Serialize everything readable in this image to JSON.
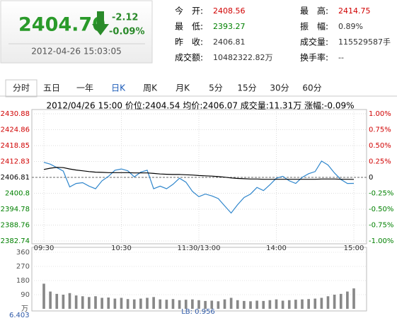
{
  "quote": {
    "price": "2404.70",
    "change": "-2.12",
    "change_pct": "-0.09%",
    "time": "2012-04-26 15:03:05",
    "fields": [
      {
        "label": "今　开:",
        "value": "2408.56",
        "color": "#d00000"
      },
      {
        "label": "最　高:",
        "value": "2414.75",
        "color": "#d00000"
      },
      {
        "label": "最　低:",
        "value": "2393.27",
        "color": "#008000"
      },
      {
        "label": "振　幅:",
        "value": "0.89%",
        "color": "#333333"
      },
      {
        "label": "昨　收:",
        "value": "2406.81",
        "color": "#333333"
      },
      {
        "label": "成交量:",
        "value": "115529587手",
        "color": "#333333"
      },
      {
        "label": "成交额:",
        "value": "10482322.82万",
        "color": "#333333"
      },
      {
        "label": "换手率:",
        "value": "--",
        "color": "#333333"
      }
    ]
  },
  "tabs": [
    "分时",
    "五日",
    "一年",
    "日K",
    "周K",
    "月K",
    "5分",
    "15分",
    "30分",
    "60分"
  ],
  "info": "2012/04/26 15:00  价位:2404.54  均价:2406.07  成交量:11.31万  涨幅:-0.09%",
  "chart_data": [
    {
      "type": "line",
      "categories": [
        "09:30",
        null,
        null,
        null,
        null,
        null,
        null,
        null,
        null,
        null,
        null,
        null,
        "10:30",
        null,
        null,
        null,
        null,
        null,
        null,
        null,
        null,
        null,
        null,
        null,
        "11:30/13:00",
        null,
        null,
        null,
        null,
        null,
        null,
        null,
        null,
        null,
        null,
        null,
        "14:00",
        null,
        null,
        null,
        null,
        null,
        null,
        null,
        null,
        null,
        null,
        null,
        "15:00"
      ],
      "series": [
        {
          "name": "价位",
          "color": "#2f86cc",
          "values": [
            2412.5,
            2411.8,
            2410.5,
            2409.2,
            2403.2,
            2404.5,
            2404.8,
            2403.5,
            2402.5,
            2405.5,
            2407.2,
            2409.5,
            2410.0,
            2409.3,
            2407.0,
            2408.8,
            2409.5,
            2402.5,
            2403.5,
            2402.5,
            2404.2,
            2406.5,
            2405.0,
            2401.5,
            2399.5,
            2400.5,
            2399.8,
            2398.8,
            2396.0,
            2393.3,
            2396.5,
            2399.2,
            2400.5,
            2403.0,
            2401.8,
            2404.0,
            2406.5,
            2407.2,
            2405.5,
            2404.5,
            2406.8,
            2408.2,
            2409.0,
            2413.0,
            2411.5,
            2408.5,
            2406.0,
            2404.5,
            2404.54
          ]
        },
        {
          "name": "均价",
          "color": "#000000",
          "values": [
            2409.8,
            2410.3,
            2410.6,
            2410.5,
            2410.0,
            2409.6,
            2409.3,
            2409.0,
            2408.8,
            2408.7,
            2408.6,
            2408.6,
            2408.6,
            2408.6,
            2408.5,
            2408.5,
            2408.5,
            2408.3,
            2408.1,
            2408.0,
            2407.9,
            2407.9,
            2407.8,
            2407.7,
            2407.5,
            2407.4,
            2407.3,
            2407.1,
            2406.9,
            2406.6,
            2406.4,
            2406.3,
            2406.2,
            2406.2,
            2406.1,
            2406.1,
            2406.1,
            2406.1,
            2406.1,
            2406.1,
            2406.1,
            2406.1,
            2406.1,
            2406.2,
            2406.2,
            2406.2,
            2406.1,
            2406.1,
            2406.07
          ]
        }
      ],
      "ylim": [
        2382.74,
        2430.88
      ],
      "yticks": [
        2430.88,
        2424.86,
        2418.85,
        2412.83,
        2406.81,
        2400.8,
        2394.78,
        2388.76,
        2382.74
      ],
      "y2lim": [
        -1,
        1
      ],
      "y2ticks": [
        {
          "value": 1,
          "label": "1.00%"
        },
        {
          "value": 0.75,
          "label": "0.75%"
        },
        {
          "value": 0.5,
          "label": "0.50%"
        },
        {
          "value": 0.25,
          "label": "0.25%"
        },
        0,
        {
          "value": -0.25,
          "label": "-0.25%"
        },
        {
          "value": -0.5,
          "label": "-0.50%"
        },
        {
          "value": -0.75,
          "label": "-0.75%"
        },
        {
          "value": -1,
          "label": "-1.00%"
        }
      ],
      "grid": true
    },
    {
      "type": "bar",
      "color": "#888888",
      "values": [
        160,
        110,
        95,
        90,
        100,
        85,
        80,
        75,
        80,
        70,
        72,
        65,
        70,
        62,
        60,
        65,
        70,
        75,
        60,
        58,
        62,
        55,
        58,
        60,
        55,
        50,
        52,
        48,
        60,
        70,
        55,
        50,
        48,
        52,
        50,
        55,
        60,
        52,
        55,
        58,
        60,
        62,
        65,
        70,
        80,
        90,
        95,
        110,
        130
      ],
      "ylim": [
        0,
        360
      ],
      "yticks": [
        360,
        270,
        180,
        90
      ],
      "unit": "万",
      "bottom_label": "6.403",
      "note": "LB: 0.956"
    }
  ]
}
